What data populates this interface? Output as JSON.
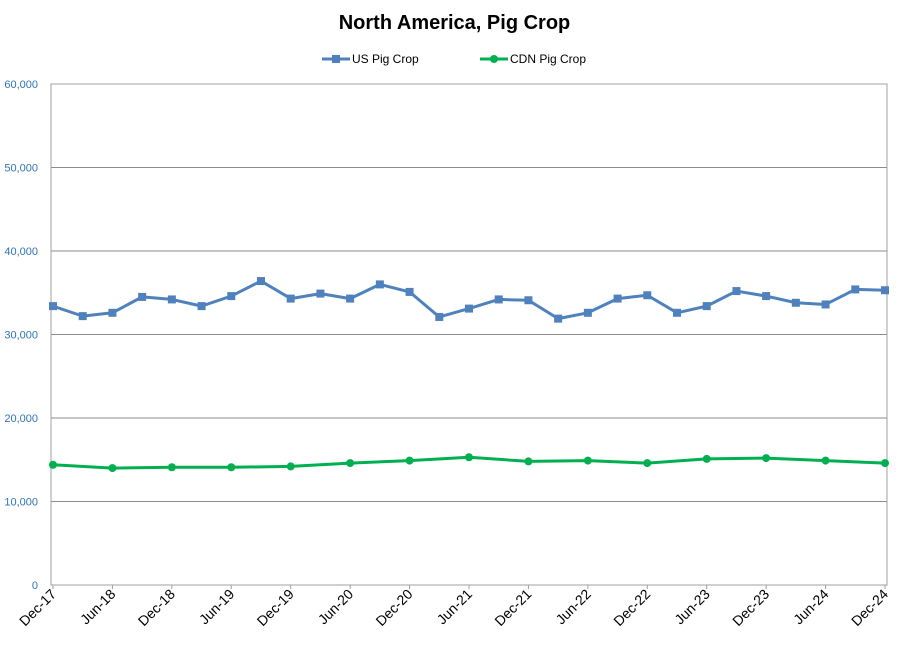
{
  "chart_data": {
    "type": "line",
    "title": "North America, Pig Crop",
    "xlabel": "",
    "ylabel": "",
    "ylim": [
      0,
      60000
    ],
    "yticks": [
      "0",
      "10,000",
      "20,000",
      "30,000",
      "40,000",
      "50,000",
      "60,000"
    ],
    "grid": true,
    "legend": "top-center",
    "x_labels": [
      "Dec-17",
      "Jun-18",
      "Dec-18",
      "Jun-19",
      "Dec-19",
      "Jun-20",
      "Dec-20",
      "Jun-21",
      "Dec-21",
      "Jun-22",
      "Dec-22",
      "Jun-23",
      "Dec-23",
      "Jun-24",
      "Dec-24"
    ],
    "series": [
      {
        "name": "US Pig Crop",
        "color": "#4f81bd",
        "marker": "square",
        "x": [
          "Dec-17",
          "Mar-18",
          "Jun-18",
          "Sep-18",
          "Dec-18",
          "Mar-19",
          "Jun-19",
          "Sep-19",
          "Dec-19",
          "Mar-20",
          "Jun-20",
          "Sep-20",
          "Dec-20",
          "Mar-21",
          "Jun-21",
          "Sep-21",
          "Dec-21",
          "Mar-22",
          "Jun-22",
          "Sep-22",
          "Dec-22",
          "Mar-23",
          "Jun-23",
          "Sep-23",
          "Dec-23",
          "Mar-24",
          "Jun-24",
          "Sep-24",
          "Dec-24"
        ],
        "values": [
          33400,
          32200,
          32600,
          34500,
          34200,
          33400,
          34600,
          36400,
          34300,
          34900,
          34300,
          36000,
          35100,
          32100,
          33100,
          34200,
          34100,
          31900,
          32600,
          34300,
          34700,
          32600,
          33400,
          35200,
          34600,
          33800,
          33600,
          35400,
          35300
        ]
      },
      {
        "name": "CDN Pig Crop",
        "color": "#00b050",
        "marker": "circle",
        "x": [
          "Dec-17",
          "Jun-18",
          "Dec-18",
          "Jun-19",
          "Dec-19",
          "Jun-20",
          "Dec-20",
          "Jun-21",
          "Dec-21",
          "Jun-22",
          "Dec-22",
          "Jun-23",
          "Dec-23",
          "Jun-24",
          "Dec-24"
        ],
        "values": [
          14400,
          14000,
          14100,
          14100,
          14200,
          14600,
          14900,
          15300,
          14800,
          14900,
          14600,
          15100,
          15200,
          14900,
          14600
        ]
      }
    ]
  }
}
